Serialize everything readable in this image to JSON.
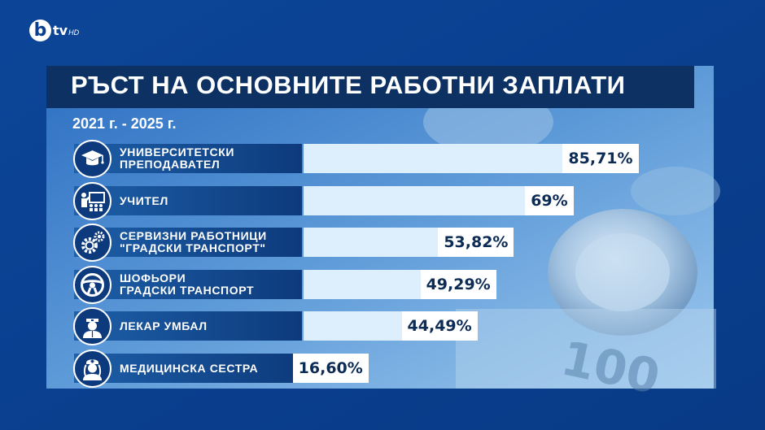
{
  "logo": {
    "letter": "b",
    "channel": "tv",
    "suffix": "HD"
  },
  "chart_data": {
    "type": "bar",
    "title": "РЪСТ НА ОСНОВНИТЕ РАБОТНИ ЗАПЛАТИ",
    "subtitle": "2021 г. - 2025 г.",
    "orientation": "horizontal",
    "unit": "%",
    "categories": [
      "УНИВЕРСИТЕТСКИ\nПРЕПОДАВАТЕЛ",
      "УЧИТЕЛ",
      "СЕРВИЗНИ РАБОТНИЦИ\n\"ГРАДСКИ ТРАНСПОРТ\"",
      "ШОФЬОРИ\nГРАДСКИ ТРАНСПОРТ",
      "ЛЕКАР УМБАЛ",
      "МЕДИЦИНСКА СЕСТРА"
    ],
    "values": [
      85.71,
      69,
      53.82,
      49.29,
      44.49,
      16.6
    ],
    "value_labels": [
      "85,71%",
      "69%",
      "53,82%",
      "49,29%",
      "44,49%",
      "16,60%"
    ],
    "icons": [
      "graduate-icon",
      "teacher-icon",
      "gears-icon",
      "steering-wheel-icon",
      "doctor-icon",
      "nurse-icon"
    ],
    "xlim": [
      0,
      100
    ],
    "grid": false,
    "colors": {
      "bar": "#ddeefd",
      "label_bg": "#0d3a7c",
      "title_bg": "#0c3162"
    }
  }
}
